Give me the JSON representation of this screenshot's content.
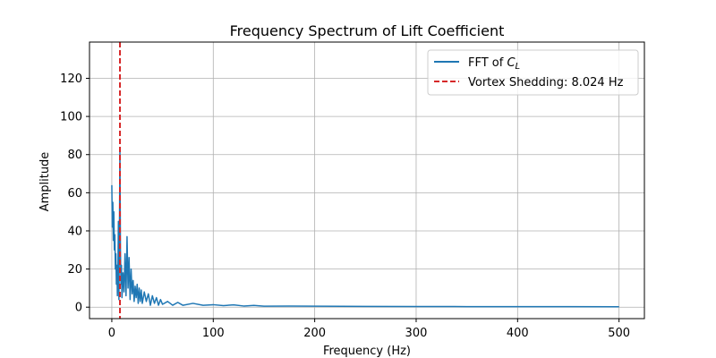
{
  "chart_data": {
    "type": "line",
    "title": "Frequency Spectrum of Lift Coefficient",
    "xlabel": "Frequency (Hz)",
    "ylabel": "Amplitude",
    "xlim": [
      -22,
      525
    ],
    "ylim": [
      -6,
      139
    ],
    "xticks": [
      0,
      100,
      200,
      300,
      400,
      500
    ],
    "yticks": [
      0,
      20,
      40,
      60,
      80,
      100,
      120
    ],
    "grid": true,
    "legend_position": "top-right",
    "series": [
      {
        "name_prefix": "FFT of ",
        "name_var": "C",
        "name_sub": "L",
        "color": "#1f77b4",
        "style": "solid",
        "x": [
          0,
          0.5,
          1,
          1.5,
          2,
          2.5,
          3,
          3.5,
          4,
          4.5,
          5,
          5.5,
          6,
          6.5,
          7,
          7.5,
          8,
          8.5,
          9,
          9.5,
          10,
          11,
          12,
          13,
          14,
          15,
          16,
          17,
          18,
          19,
          20,
          21,
          22,
          23,
          24,
          25,
          26,
          27,
          28,
          29,
          30,
          32,
          34,
          36,
          38,
          40,
          42,
          44,
          46,
          48,
          50,
          55,
          60,
          65,
          70,
          80,
          90,
          100,
          110,
          120,
          130,
          140,
          150,
          175,
          200,
          250,
          300,
          350,
          400,
          450,
          500
        ],
        "values": [
          64,
          42,
          55,
          35,
          50,
          30,
          38,
          20,
          28,
          12,
          22,
          6,
          18,
          45,
          4,
          40,
          83,
          30,
          12,
          22,
          5,
          18,
          8,
          28,
          6,
          37,
          10,
          26,
          4,
          20,
          7,
          14,
          3,
          11,
          5,
          12,
          2,
          10,
          3,
          9,
          2,
          8,
          3,
          7,
          1,
          6,
          2,
          5,
          1,
          4,
          1.5,
          3,
          1,
          2.5,
          1,
          2,
          1,
          1.3,
          0.8,
          1.2,
          0.6,
          0.9,
          0.5,
          0.6,
          0.5,
          0.4,
          0.35,
          0.3,
          0.3,
          0.25,
          0.2
        ]
      },
      {
        "name": "Vortex Shedding: 8.024 Hz",
        "color": "#d62728",
        "style": "dashed",
        "vline_x": 8.024
      }
    ]
  }
}
